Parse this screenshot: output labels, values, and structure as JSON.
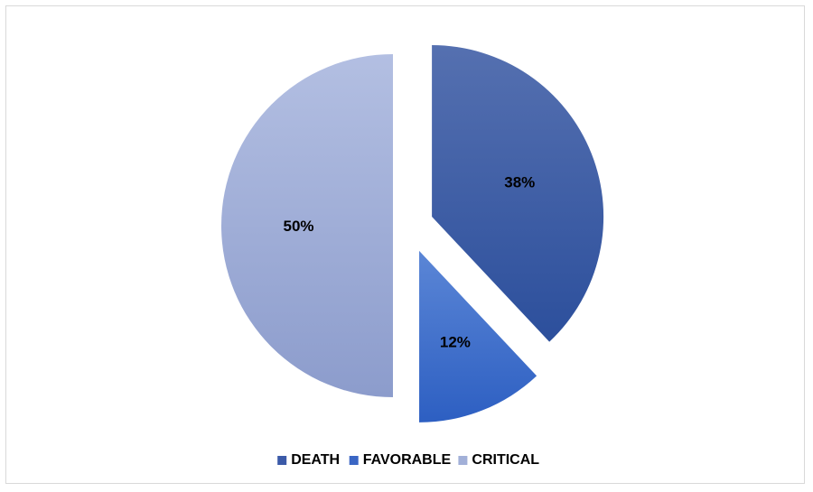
{
  "chart_data": {
    "type": "pie",
    "title": "",
    "categories": [
      "DEATH",
      "FAVORABLE",
      "CRITICAL"
    ],
    "values": [
      38,
      12,
      50
    ],
    "labels": [
      "38%",
      "12%",
      "50%"
    ],
    "colors": [
      "#3b5aa8",
      "#3a66c4",
      "#a2b0d8"
    ],
    "exploded": true,
    "legend_position": "bottom"
  }
}
